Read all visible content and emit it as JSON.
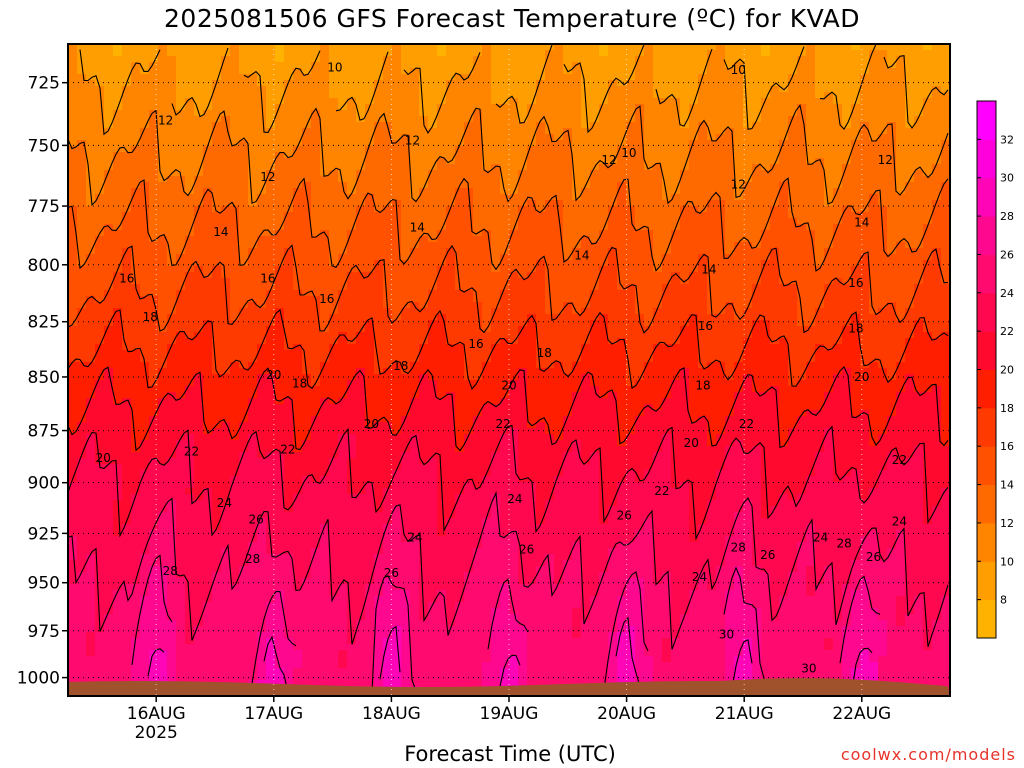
{
  "title": "2025081506 GFS Forecast Temperature (ºC) for KVAD",
  "credit": "coolwx.com/models",
  "chart_data": {
    "type": "heatmap",
    "title": "2025081506 GFS Forecast Temperature (ºC) for KVAD",
    "xlabel": "Forecast Time (UTC)",
    "ylabel": "",
    "x_ticks": [
      {
        "label": "16AUG",
        "sub": "2025",
        "day": 16
      },
      {
        "label": "17AUG",
        "sub": "",
        "day": 17
      },
      {
        "label": "18AUG",
        "sub": "",
        "day": 18
      },
      {
        "label": "19AUG",
        "sub": "",
        "day": 19
      },
      {
        "label": "20AUG",
        "sub": "",
        "day": 20
      },
      {
        "label": "21AUG",
        "sub": "",
        "day": 21
      },
      {
        "label": "22AUG",
        "sub": "",
        "day": 22
      }
    ],
    "xlim_days": [
      15.25,
      22.75
    ],
    "y_ticks": [
      725,
      750,
      775,
      800,
      825,
      850,
      875,
      900,
      925,
      950,
      975,
      1000
    ],
    "ylim_hpa": [
      1010,
      710
    ],
    "y_scale": "log-pressure (reversed)",
    "grid": "dotted",
    "colorbar": {
      "ticks": [
        8,
        10,
        12,
        14,
        16,
        18,
        20,
        22,
        24,
        26,
        28,
        30,
        32
      ],
      "range": [
        6,
        34
      ],
      "colors": [
        "#ffb300",
        "#ff9e00",
        "#ff8400",
        "#ff6a00",
        "#ff5100",
        "#ff3a00",
        "#ff1f00",
        "#ff0a2e",
        "#ff0850",
        "#ff0a6e",
        "#ff0890",
        "#ff05b8",
        "#ff00dd",
        "#ff00ff"
      ]
    },
    "contour_levels": [
      10,
      12,
      14,
      16,
      18,
      20,
      22,
      24,
      26,
      28,
      30
    ],
    "profile": {
      "pressure_levels": [
        710,
        725,
        750,
        775,
        800,
        825,
        850,
        875,
        900,
        925,
        950,
        975,
        1000,
        1010
      ],
      "temperatures_c": [
        9.0,
        10.0,
        11.7,
        13.4,
        15.2,
        17.0,
        19.0,
        20.8,
        22.4,
        23.6,
        24.9,
        26.1,
        27.0,
        27.3
      ]
    },
    "diurnal_peaks_day": [
      16.0,
      17.0,
      18.0,
      19.0,
      20.0,
      21.0,
      22.0
    ],
    "contour_labels": [
      {
        "text": "10",
        "day": 17.52,
        "p": 719
      },
      {
        "text": "10",
        "day": 20.95,
        "p": 720
      },
      {
        "text": "10",
        "day": 20.02,
        "p": 753
      },
      {
        "text": "12",
        "day": 16.08,
        "p": 740
      },
      {
        "text": "12",
        "day": 16.95,
        "p": 763
      },
      {
        "text": "12",
        "day": 18.18,
        "p": 748
      },
      {
        "text": "12",
        "day": 19.85,
        "p": 756
      },
      {
        "text": "12",
        "day": 20.95,
        "p": 766
      },
      {
        "text": "12",
        "day": 22.2,
        "p": 756
      },
      {
        "text": "14",
        "day": 16.55,
        "p": 786
      },
      {
        "text": "14",
        "day": 18.22,
        "p": 784
      },
      {
        "text": "14",
        "day": 19.62,
        "p": 796
      },
      {
        "text": "14",
        "day": 20.7,
        "p": 802
      },
      {
        "text": "14",
        "day": 22.0,
        "p": 782
      },
      {
        "text": "16",
        "day": 15.75,
        "p": 806
      },
      {
        "text": "16",
        "day": 16.95,
        "p": 806
      },
      {
        "text": "16",
        "day": 17.45,
        "p": 815
      },
      {
        "text": "16",
        "day": 18.72,
        "p": 835
      },
      {
        "text": "16",
        "day": 20.67,
        "p": 827
      },
      {
        "text": "16",
        "day": 21.95,
        "p": 808
      },
      {
        "text": "18",
        "day": 15.95,
        "p": 823
      },
      {
        "text": "18",
        "day": 17.22,
        "p": 853
      },
      {
        "text": "18",
        "day": 18.08,
        "p": 845
      },
      {
        "text": "18",
        "day": 19.3,
        "p": 839
      },
      {
        "text": "18",
        "day": 20.65,
        "p": 854
      },
      {
        "text": "18",
        "day": 21.95,
        "p": 828
      },
      {
        "text": "20",
        "day": 15.55,
        "p": 888
      },
      {
        "text": "20",
        "day": 17.0,
        "p": 849
      },
      {
        "text": "20",
        "day": 17.83,
        "p": 872
      },
      {
        "text": "20",
        "day": 19.0,
        "p": 854
      },
      {
        "text": "20",
        "day": 20.55,
        "p": 881
      },
      {
        "text": "20",
        "day": 22.0,
        "p": 850
      },
      {
        "text": "22",
        "day": 16.3,
        "p": 885
      },
      {
        "text": "22",
        "day": 17.12,
        "p": 884
      },
      {
        "text": "22",
        "day": 18.95,
        "p": 872
      },
      {
        "text": "22",
        "day": 20.3,
        "p": 904
      },
      {
        "text": "22",
        "day": 21.02,
        "p": 872
      },
      {
        "text": "22",
        "day": 22.32,
        "p": 889
      },
      {
        "text": "24",
        "day": 16.58,
        "p": 910
      },
      {
        "text": "24",
        "day": 18.2,
        "p": 927
      },
      {
        "text": "24",
        "day": 19.05,
        "p": 908
      },
      {
        "text": "24",
        "day": 20.62,
        "p": 947
      },
      {
        "text": "24",
        "day": 21.65,
        "p": 927
      },
      {
        "text": "24",
        "day": 22.32,
        "p": 919
      },
      {
        "text": "26",
        "day": 16.85,
        "p": 918
      },
      {
        "text": "26",
        "day": 18.0,
        "p": 945
      },
      {
        "text": "26",
        "day": 19.15,
        "p": 933
      },
      {
        "text": "26",
        "day": 19.98,
        "p": 916
      },
      {
        "text": "26",
        "day": 21.2,
        "p": 936
      },
      {
        "text": "26",
        "day": 22.1,
        "p": 937
      },
      {
        "text": "28",
        "day": 16.12,
        "p": 944
      },
      {
        "text": "28",
        "day": 16.82,
        "p": 938
      },
      {
        "text": "28",
        "day": 20.95,
        "p": 932
      },
      {
        "text": "28",
        "day": 21.85,
        "p": 930
      },
      {
        "text": "30",
        "day": 20.85,
        "p": 977
      },
      {
        "text": "30",
        "day": 21.55,
        "p": 995
      }
    ]
  }
}
